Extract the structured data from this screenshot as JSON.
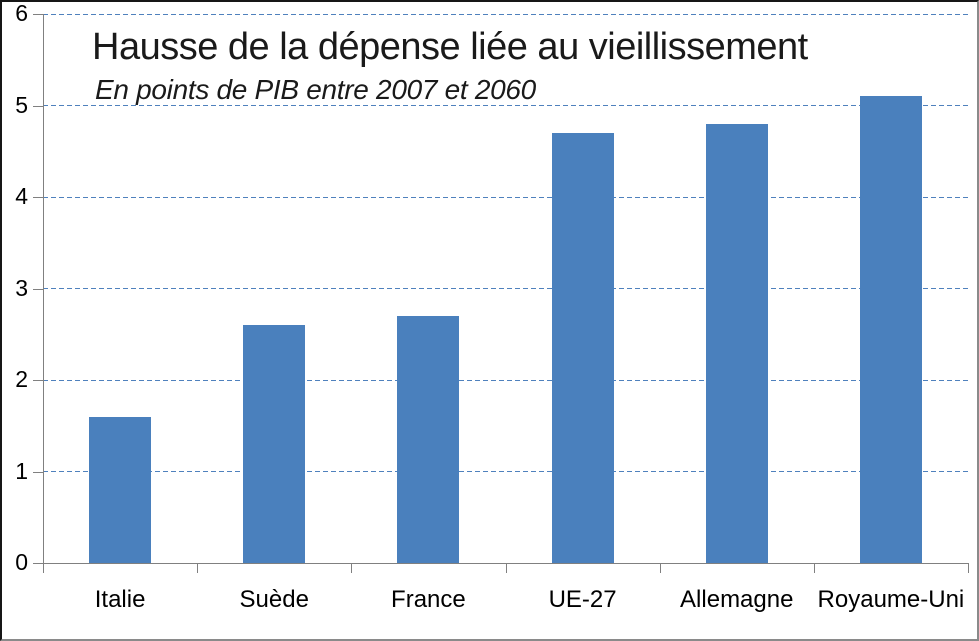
{
  "chart_data": {
    "type": "bar",
    "title": "Hausse de la dépense liée au vieillissement",
    "subtitle": "En points de PIB entre 2007 et 2060",
    "categories": [
      "Italie",
      "Suède",
      "France",
      "UE-27",
      "Allemagne",
      "Royaume-Uni"
    ],
    "values": [
      1.6,
      2.6,
      2.7,
      4.7,
      4.8,
      5.1
    ],
    "xlabel": "",
    "ylabel": "",
    "ylim": [
      0,
      6
    ],
    "yticks": [
      0,
      1,
      2,
      3,
      4,
      5,
      6
    ],
    "grid": "horizontal dashed",
    "legend": "none",
    "colors": {
      "bar": "#4a80bd",
      "gridline": "#4f81bd",
      "axis": "#808080",
      "text": "#000000"
    }
  }
}
